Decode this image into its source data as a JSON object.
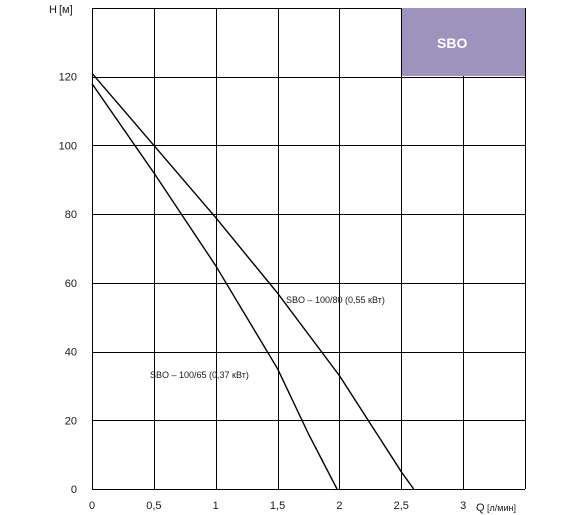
{
  "chart_data": {
    "type": "line",
    "title": "",
    "badge": {
      "text": "SBO",
      "color": "#9d93bd"
    },
    "ylabel_prefix": "H",
    "ylabel_unit": "[м]",
    "xlabel_prefix": "Q",
    "xlabel_unit": "[л/мин]",
    "xlim": [
      0,
      3.5
    ],
    "ylim": [
      0,
      140
    ],
    "x_ticks": [
      "0",
      "0,5",
      "1",
      "1,5",
      "2",
      "2,5",
      "3"
    ],
    "y_ticks": [
      "0",
      "20",
      "40",
      "60",
      "80",
      "100",
      "120"
    ],
    "x_tick_values": [
      0,
      0.5,
      1,
      1.5,
      2,
      2.5,
      3
    ],
    "y_tick_values": [
      0,
      20,
      40,
      60,
      80,
      100,
      120
    ],
    "grid": true,
    "series": [
      {
        "name": "SBO – 100/80 (0,55 кВт)",
        "x": [
          0,
          0.5,
          1,
          1.5,
          2,
          2.25,
          2.5,
          2.6
        ],
        "y": [
          121,
          100,
          79,
          57,
          33,
          19,
          5,
          0
        ]
      },
      {
        "name": "SBO – 100/65 (0,37 кВт)",
        "x": [
          0,
          0.5,
          1,
          1.5,
          1.75,
          1.98
        ],
        "y": [
          118,
          92,
          65,
          35,
          16,
          0
        ]
      }
    ]
  }
}
